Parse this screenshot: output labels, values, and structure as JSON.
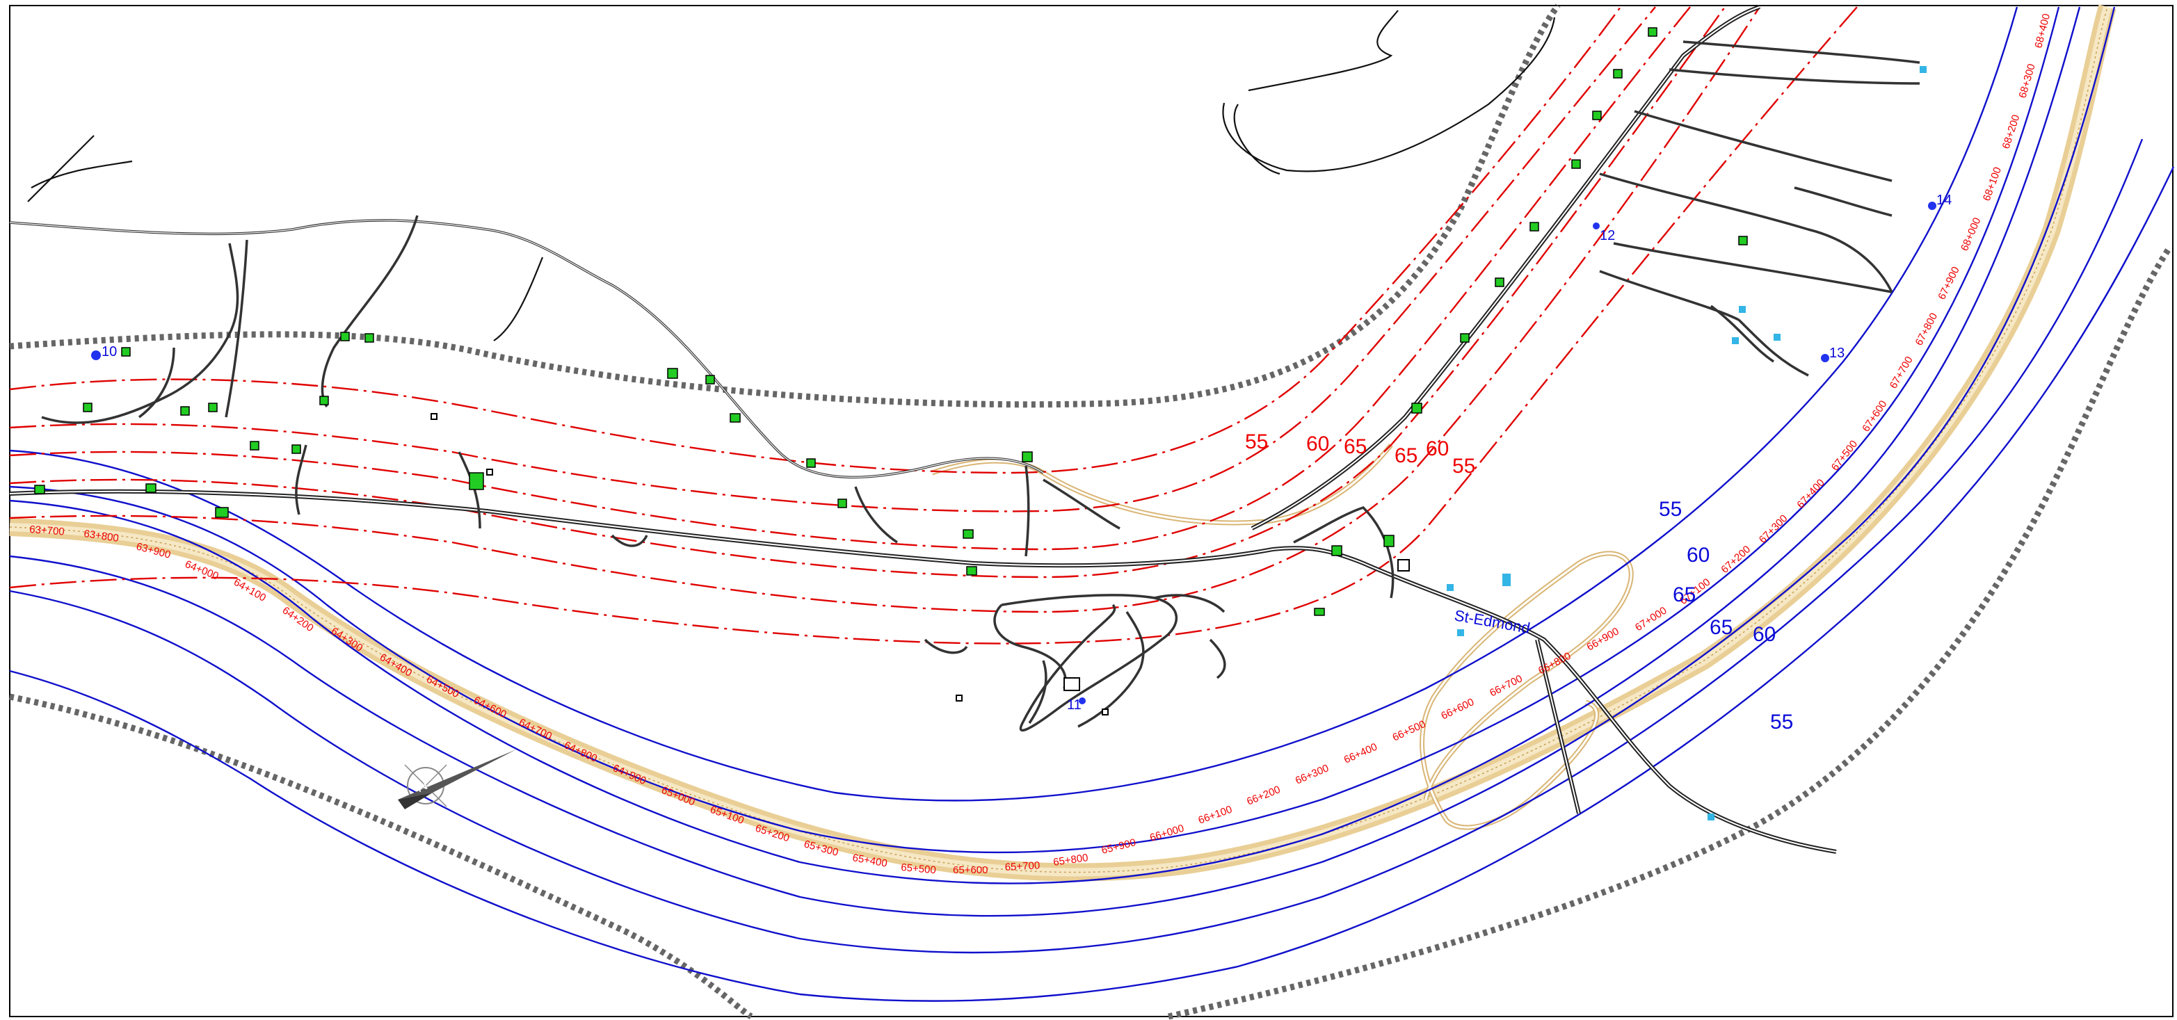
{
  "isophone_labels": {
    "red": [
      "55",
      "60",
      "65",
      "65",
      "60",
      "55"
    ],
    "blue": [
      "55",
      "60",
      "65",
      "65",
      "60",
      "55"
    ]
  },
  "points": [
    "10",
    "11",
    "12",
    "13",
    "14"
  ],
  "town": "St-Edmond",
  "chainage_west": [
    "63+700",
    "63+800",
    "63+900",
    "64+000",
    "64+100",
    "64+200",
    "64+300",
    "64+400",
    "64+500",
    "64+600",
    "64+700",
    "64+800",
    "64+900",
    "65+000",
    "65+100",
    "65+200",
    "65+300",
    "65+400",
    "65+500",
    "65+600",
    "65+700",
    "65+800",
    "65+900",
    "66+000",
    "66+100",
    "66+200",
    "66+300",
    "66+400",
    "66+500",
    "66+600",
    "66+700",
    "66+800",
    "66+900"
  ],
  "chainage_east": [
    "67+000",
    "67+100",
    "67+200",
    "67+300",
    "67+400",
    "67+500",
    "67+600",
    "67+700",
    "67+800",
    "67+900",
    "68+000",
    "68+100",
    "68+200",
    "68+300",
    "68+400"
  ],
  "colors": {
    "isophone_existing": "#e00000",
    "isophone_projected": "#1010cc",
    "highway": "#e9cf96",
    "buildings": "#22cc22",
    "study_limit": "#666666"
  },
  "icons": {
    "north_arrow": "north-arrow-icon"
  }
}
